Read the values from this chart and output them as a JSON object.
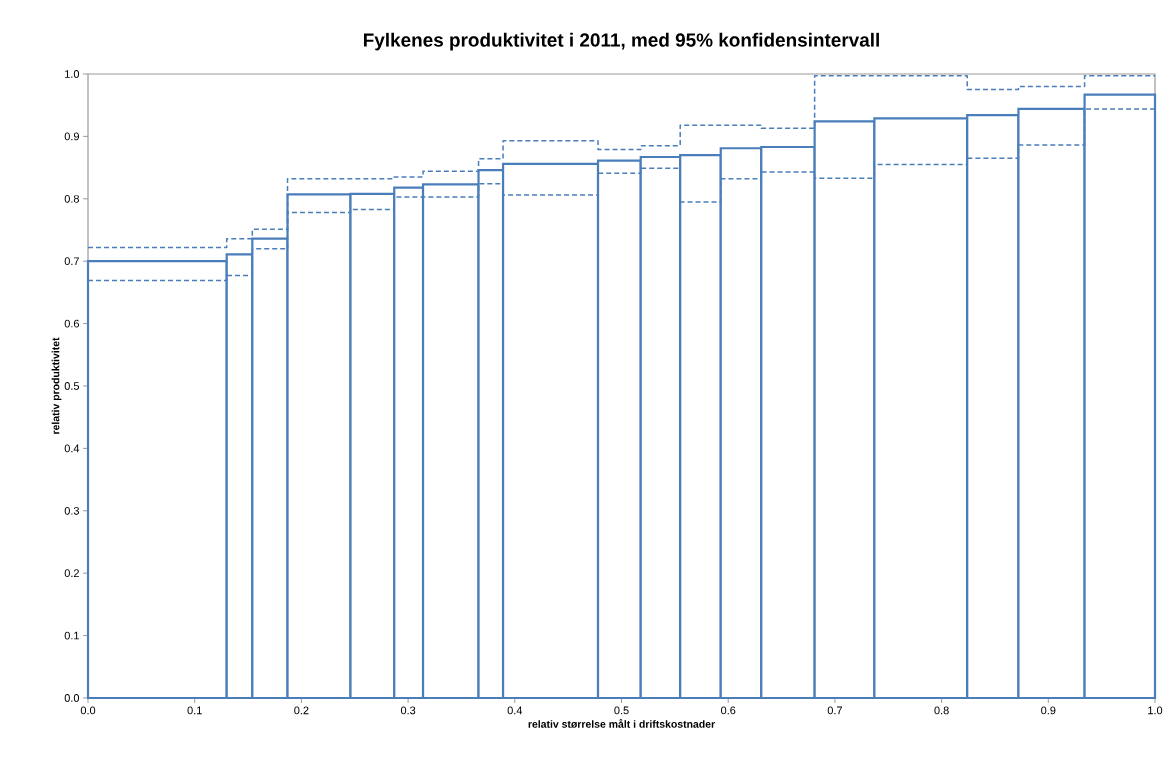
{
  "chart_data": {
    "type": "histogram",
    "title": "Fylkenes produktivitet i 2011, med 95% konfidensintervall",
    "xlabel": "relativ størrelse målt i driftskostnader",
    "ylabel": "relativ produktivitet",
    "color": "#4a7ebb",
    "bins": [
      0,
      0.13,
      0.154,
      0.187,
      0.246,
      0.287,
      0.314,
      0.366,
      0.389,
      0.478,
      0.518,
      0.555,
      0.593,
      0.631,
      0.681,
      0.737,
      0.824,
      0.872,
      0.934,
      1.0
    ],
    "values": [
      0.7,
      0.711,
      0.736,
      0.807,
      0.808,
      0.818,
      0.823,
      0.846,
      0.856,
      0.861,
      0.867,
      0.87,
      0.881,
      0.883,
      0.924,
      0.929,
      0.934,
      0.944,
      0.967
    ],
    "series": [
      {
        "type": "step",
        "color": "#4a7ebb",
        "line_style": "dashed",
        "x": [
          0,
          0.13,
          0.154,
          0.187,
          0.246,
          0.287,
          0.314,
          0.366,
          0.389,
          0.478,
          0.518,
          0.555,
          0.593,
          0.631,
          0.681,
          0.737,
          0.824,
          0.872,
          0.934,
          1.0
        ],
        "values": [
          0.722,
          0.736,
          0.751,
          0.832,
          0.832,
          0.835,
          0.844,
          0.864,
          0.893,
          0.879,
          0.885,
          0.918,
          0.918,
          0.913,
          0.997,
          0.997,
          0.975,
          0.98,
          0.997,
          0.997
        ]
      },
      {
        "type": "step",
        "color": "#4a7ebb",
        "line_style": "dashed",
        "x": [
          0,
          0.13,
          0.154,
          0.187,
          0.246,
          0.287,
          0.314,
          0.366,
          0.389,
          0.478,
          0.518,
          0.555,
          0.593,
          0.631,
          0.681,
          0.737,
          0.824,
          0.872,
          0.934,
          1.0
        ],
        "values": [
          0.669,
          0.677,
          0.72,
          0.778,
          0.783,
          0.803,
          0.803,
          0.824,
          0.806,
          0.841,
          0.849,
          0.795,
          0.832,
          0.843,
          0.833,
          0.855,
          0.865,
          0.886,
          0.944,
          0.944
        ]
      }
    ],
    "xlim": [
      0,
      1
    ],
    "ylim": [
      0,
      1
    ],
    "xticks": [
      {
        "value": 0,
        "label": "0.0"
      },
      0.1,
      0.2,
      0.3,
      0.4,
      0.5,
      0.6,
      0.7,
      0.8,
      0.9,
      {
        "value": 1,
        "label": "1.0"
      }
    ],
    "yticks": [
      {
        "value": 0,
        "label": "0.0"
      },
      0.1,
      0.2,
      0.3,
      0.4,
      0.5,
      0.6,
      0.7,
      0.8,
      0.9,
      {
        "value": 1,
        "label": "1.0"
      }
    ]
  }
}
